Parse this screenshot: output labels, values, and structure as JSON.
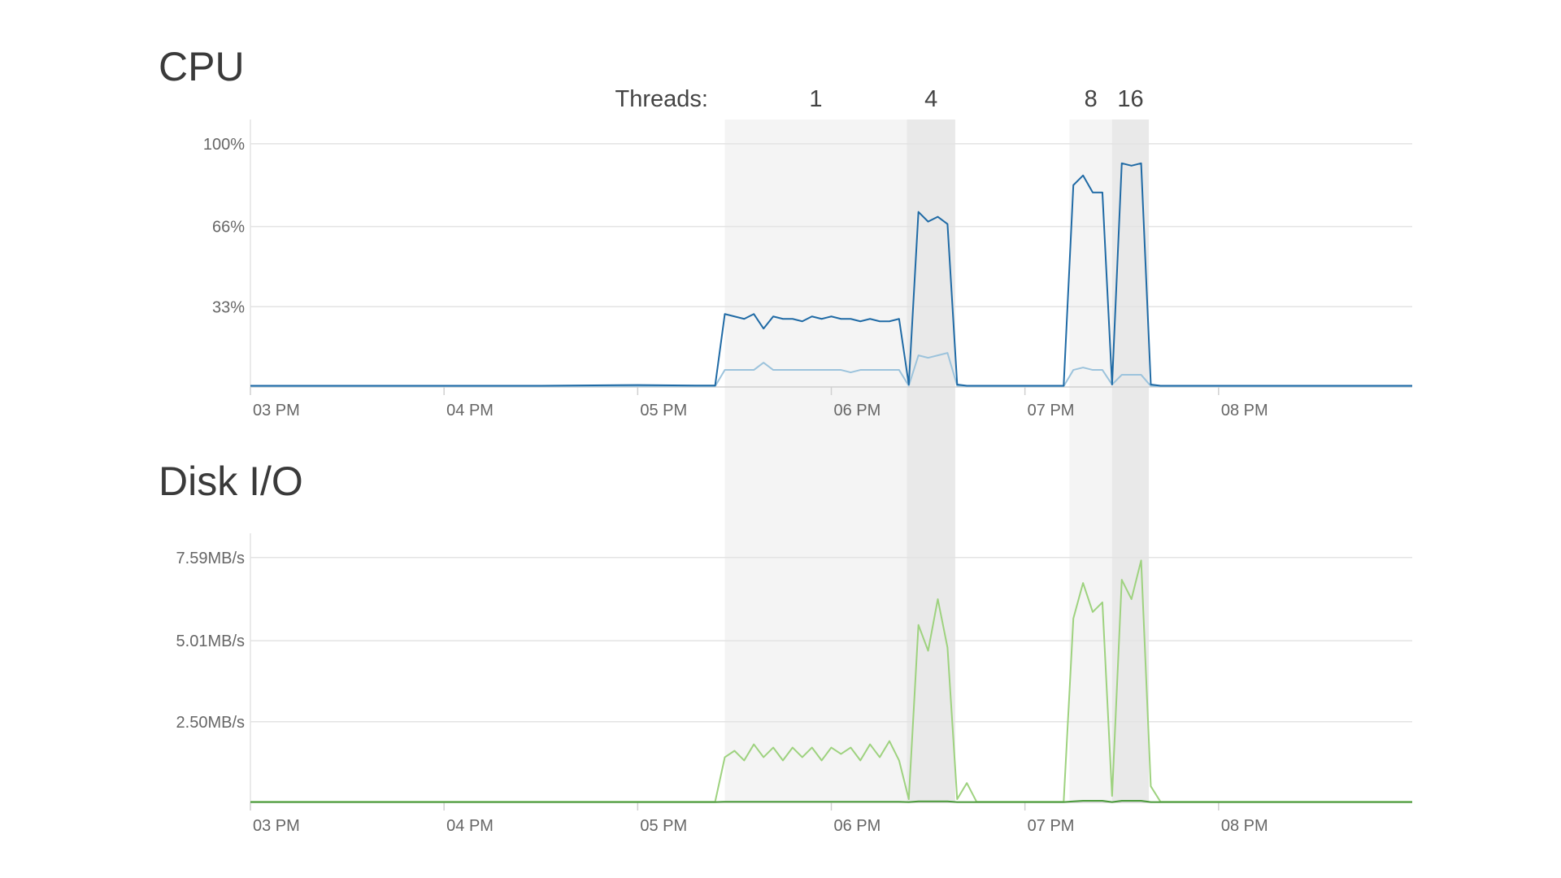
{
  "threads": {
    "label": "Threads:",
    "regions": [
      {
        "label": "1",
        "xlim": [
          17.45,
          18.39
        ],
        "color": "#f4f4f4"
      },
      {
        "label": "4",
        "xlim": [
          18.39,
          18.64
        ],
        "color": "#e9e9e9"
      },
      {
        "label": "8",
        "xlim": [
          19.23,
          19.45
        ],
        "color": "#f4f4f4"
      },
      {
        "label": "16",
        "xlim": [
          19.45,
          19.64
        ],
        "color": "#e9e9e9"
      }
    ]
  },
  "chart_data": [
    {
      "type": "line",
      "title": "CPU",
      "x": [
        15,
        15.5,
        16,
        16.5,
        17,
        17.3,
        17.4,
        17.45,
        17.5,
        17.55,
        17.6,
        17.65,
        17.7,
        17.75,
        17.8,
        17.85,
        17.9,
        17.95,
        18.0,
        18.05,
        18.1,
        18.15,
        18.2,
        18.25,
        18.3,
        18.35,
        18.4,
        18.45,
        18.5,
        18.55,
        18.6,
        18.65,
        18.7,
        18.75,
        18.8,
        18.85,
        18.9,
        18.95,
        19.0,
        19.05,
        19.1,
        19.15,
        19.2,
        19.25,
        19.3,
        19.35,
        19.4,
        19.45,
        19.5,
        19.55,
        19.6,
        19.65,
        19.7,
        19.75,
        20,
        20.5,
        21
      ],
      "series": [
        {
          "color": "#9cc3dc",
          "values": [
            0.3,
            0.3,
            0.3,
            0.3,
            0.3,
            0.3,
            0.3,
            7,
            7,
            7,
            7,
            10,
            7,
            7,
            7,
            7,
            7,
            7,
            7,
            7,
            6,
            7,
            7,
            7,
            7,
            7,
            0.5,
            13,
            12,
            13,
            14,
            0.5,
            0.3,
            0.3,
            0.3,
            0.3,
            0.3,
            0.3,
            0.3,
            0.3,
            0.3,
            0.3,
            0.3,
            7,
            8,
            7,
            7,
            1,
            5,
            5,
            5,
            0.4,
            0.3,
            0.3,
            0.3,
            0.3,
            0.3
          ]
        },
        {
          "color": "#1f6aa5",
          "values": [
            0.5,
            0.5,
            0.5,
            0.5,
            0.8,
            0.6,
            0.6,
            30,
            29,
            28,
            30,
            24,
            29,
            28,
            28,
            27,
            29,
            28,
            29,
            28,
            28,
            27,
            28,
            27,
            27,
            28,
            1,
            72,
            68,
            70,
            67,
            1,
            0.5,
            0.5,
            0.5,
            0.5,
            0.5,
            0.5,
            0.5,
            0.5,
            0.5,
            0.5,
            0.5,
            83,
            87,
            80,
            80,
            1,
            92,
            91,
            92,
            1,
            0.5,
            0.5,
            0.5,
            0.5,
            0.5
          ]
        }
      ],
      "xlim": [
        15,
        21
      ],
      "xticks": [
        {
          "value": 15,
          "label": "03 PM"
        },
        {
          "value": 16,
          "label": "04 PM"
        },
        {
          "value": 17,
          "label": "05 PM"
        },
        {
          "value": 18,
          "label": "06 PM"
        },
        {
          "value": 19,
          "label": "07 PM"
        },
        {
          "value": 20,
          "label": "08 PM"
        }
      ],
      "ylim": [
        0,
        110
      ],
      "yticks": [
        {
          "value": 33,
          "label": "33%"
        },
        {
          "value": 66,
          "label": "66%"
        },
        {
          "value": 100,
          "label": "100%"
        }
      ],
      "grid": true
    },
    {
      "type": "line",
      "title": "Disk I/O",
      "x": [
        15,
        15.5,
        16,
        16.5,
        17,
        17.3,
        17.4,
        17.45,
        17.5,
        17.55,
        17.6,
        17.65,
        17.7,
        17.75,
        17.8,
        17.85,
        17.9,
        17.95,
        18.0,
        18.05,
        18.1,
        18.15,
        18.2,
        18.25,
        18.3,
        18.35,
        18.4,
        18.45,
        18.5,
        18.55,
        18.6,
        18.65,
        18.7,
        18.75,
        18.8,
        18.85,
        18.9,
        18.95,
        19.0,
        19.05,
        19.1,
        19.15,
        19.2,
        19.25,
        19.3,
        19.35,
        19.4,
        19.45,
        19.5,
        19.55,
        19.6,
        19.65,
        19.7,
        19.75,
        20,
        20.5,
        21
      ],
      "series": [
        {
          "color": "#9ed27f",
          "values": [
            0.02,
            0.02,
            0.02,
            0.02,
            0.02,
            0.02,
            0.02,
            1.4,
            1.6,
            1.3,
            1.8,
            1.4,
            1.7,
            1.3,
            1.7,
            1.4,
            1.7,
            1.3,
            1.7,
            1.5,
            1.7,
            1.3,
            1.8,
            1.4,
            1.9,
            1.3,
            0.1,
            5.5,
            4.7,
            6.3,
            4.8,
            0.1,
            0.6,
            0.02,
            0.02,
            0.02,
            0.02,
            0.02,
            0.02,
            0.02,
            0.02,
            0.02,
            0.02,
            5.7,
            6.8,
            5.9,
            6.2,
            0.2,
            6.9,
            6.3,
            7.5,
            0.5,
            0.02,
            0.02,
            0.02,
            0.02,
            0.02
          ]
        },
        {
          "color": "#4a9a3a",
          "values": [
            0.01,
            0.01,
            0.01,
            0.01,
            0.01,
            0.01,
            0.01,
            0.02,
            0.02,
            0.02,
            0.02,
            0.02,
            0.02,
            0.02,
            0.02,
            0.02,
            0.02,
            0.02,
            0.02,
            0.02,
            0.02,
            0.02,
            0.02,
            0.02,
            0.02,
            0.02,
            0.01,
            0.03,
            0.03,
            0.03,
            0.03,
            0.01,
            0.01,
            0.01,
            0.01,
            0.01,
            0.01,
            0.01,
            0.01,
            0.01,
            0.01,
            0.01,
            0.01,
            0.03,
            0.05,
            0.05,
            0.05,
            0.01,
            0.05,
            0.05,
            0.05,
            0.01,
            0.01,
            0.01,
            0.01,
            0.01,
            0.01
          ]
        }
      ],
      "xlim": [
        15,
        21
      ],
      "xticks": [
        {
          "value": 15,
          "label": "03 PM"
        },
        {
          "value": 16,
          "label": "04 PM"
        },
        {
          "value": 17,
          "label": "05 PM"
        },
        {
          "value": 18,
          "label": "06 PM"
        },
        {
          "value": 19,
          "label": "07 PM"
        },
        {
          "value": 20,
          "label": "08 PM"
        }
      ],
      "ylim": [
        0,
        8.34
      ],
      "yticks": [
        {
          "value": 2.5,
          "label": "2.50MB/s"
        },
        {
          "value": 5.01,
          "label": "5.01MB/s"
        },
        {
          "value": 7.59,
          "label": "7.59MB/s"
        }
      ],
      "grid": true
    }
  ]
}
